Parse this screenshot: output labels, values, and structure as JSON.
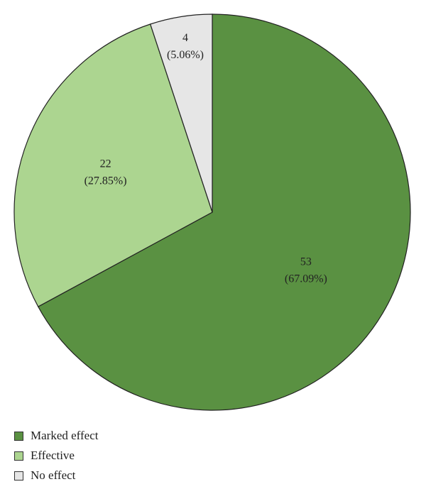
{
  "chart_data": {
    "type": "pie",
    "slices": [
      {
        "label": "Marked effect",
        "value": 53,
        "percent_label": "(67.09%)",
        "value_label": "53",
        "color": "#5a9142"
      },
      {
        "label": "Effective",
        "value": 22,
        "percent_label": "(27.85%)",
        "value_label": "22",
        "color": "#acd590"
      },
      {
        "label": "No effect",
        "value": 4,
        "percent_label": "(5.06%)",
        "value_label": "4",
        "color": "#e6e6e6"
      }
    ],
    "start_angle": "12 o'clock",
    "direction": "clockwise",
    "legend": {
      "position": "bottom-left",
      "items": [
        "Marked effect",
        "Effective",
        "No effect"
      ]
    }
  }
}
